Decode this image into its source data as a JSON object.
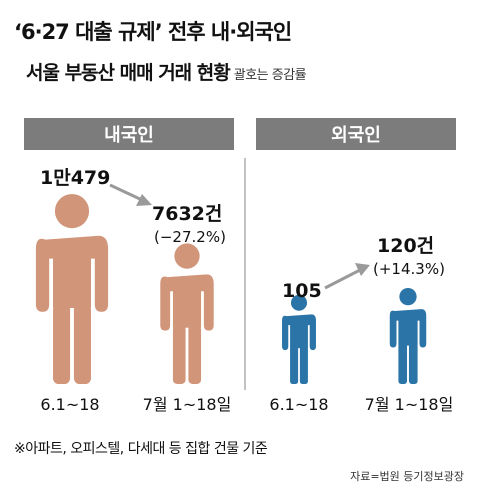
{
  "header": {
    "title": "‘6·27 대출 규제’ 전후 내·외국인",
    "subtitle": "서울 부동산 매매 거래 현황",
    "subtitle_note": "괄호는 증감률"
  },
  "panels": [
    {
      "label": "내국인"
    },
    {
      "label": "외국인"
    }
  ],
  "chart_data": [
    {
      "type": "bar",
      "panel": "내국인",
      "categories": [
        "6.1~18",
        "7월 1~18일"
      ],
      "values": [
        10479,
        7632
      ],
      "value_labels": [
        "1만479",
        "7632건"
      ],
      "change_label": "(−27.2%)",
      "figure_color": "#d1967a"
    },
    {
      "type": "bar",
      "panel": "외국인",
      "categories": [
        "6.1~18",
        "7월 1~18일"
      ],
      "values": [
        105,
        120
      ],
      "value_labels": [
        "105",
        "120건"
      ],
      "change_label": "(+14.3%)",
      "figure_color": "#2b74a7"
    }
  ],
  "footer": {
    "note": "※아파트, 오피스텔, 다세대 등 집합 건물 기준",
    "source": "자료=법원 등기정보광장"
  },
  "colors": {
    "panel_header": "#7c7c7c",
    "divider": "#9a9a9a",
    "arrow": "#9a9a9a"
  }
}
